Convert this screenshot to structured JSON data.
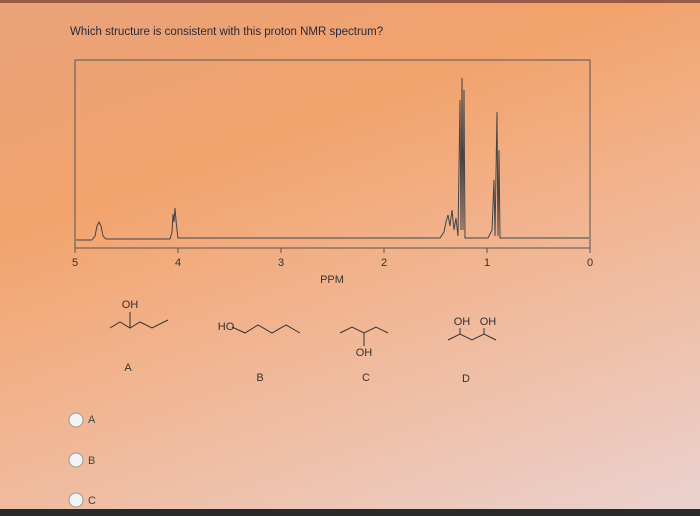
{
  "question": "Which structure is consistent with this proton NMR spectrum?",
  "spectrum": {
    "xlim": [
      5,
      0
    ],
    "xticks": [
      5,
      4,
      3,
      2,
      1,
      0
    ],
    "xlabel": "PPM"
  },
  "structures": [
    {
      "substituents": [
        "OH"
      ],
      "label": "A"
    },
    {
      "substituents": [
        "HO"
      ],
      "label": "B"
    },
    {
      "substituents": [
        "OH"
      ],
      "label": "C"
    },
    {
      "substituents": [
        "OH",
        "OH"
      ],
      "label": "D"
    }
  ],
  "options": [
    "A",
    "B",
    "C"
  ]
}
